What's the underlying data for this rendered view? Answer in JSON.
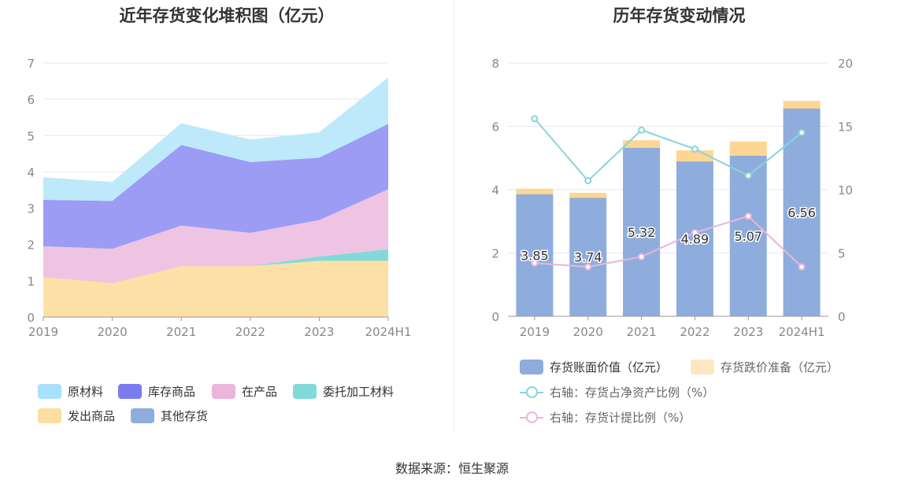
{
  "left": {
    "title": "近年存货变化堆积图（亿元）",
    "legend": [
      {
        "label": "原材料",
        "color": "#a8e1fb"
      },
      {
        "label": "库存商品",
        "color": "#7b7bf0"
      },
      {
        "label": "在产品",
        "color": "#ebb6d9"
      },
      {
        "label": "委托加工材料",
        "color": "#82d9d9"
      },
      {
        "label": "发出商品",
        "color": "#fddea0"
      },
      {
        "label": "其他存货",
        "color": "#8eaddc"
      }
    ]
  },
  "right": {
    "title": "历年存货变动情况",
    "legend": [
      {
        "label": "存货账面价值（亿元）",
        "color": "#8eaddc"
      },
      {
        "label": "存货跌价准备（亿元）",
        "color": "#fde6c0"
      },
      {
        "label": "右轴：存货占净资产比例（%）",
        "color": "#88d4d8"
      },
      {
        "label": "右轴：存货计提比例（%）",
        "color": "#e8b6da"
      }
    ]
  },
  "source": "数据来源：恒生聚源",
  "chart_data": [
    {
      "type": "area",
      "title": "近年存货变化堆积图（亿元）",
      "stacked": true,
      "categories": [
        "2019",
        "2020",
        "2021",
        "2022",
        "2023",
        "2024H1"
      ],
      "ylim": [
        0,
        7
      ],
      "yticks": [
        0,
        1,
        2,
        3,
        4,
        5,
        6,
        7
      ],
      "grid": true,
      "legend_position": "bottom",
      "series": [
        {
          "name": "发出商品",
          "color": "#fde0a6",
          "values": [
            1.1,
            0.93,
            1.4,
            1.4,
            1.55,
            1.55
          ]
        },
        {
          "name": "委托加工材料",
          "color": "#82d9d9",
          "values": [
            0.0,
            0.0,
            0.0,
            0.0,
            0.12,
            0.32
          ]
        },
        {
          "name": "在产品",
          "color": "#eec4e2",
          "values": [
            0.85,
            0.95,
            1.12,
            0.92,
            1.0,
            1.65
          ]
        },
        {
          "name": "库存商品",
          "color": "#9c9cf4",
          "values": [
            1.28,
            1.32,
            2.22,
            1.95,
            1.72,
            1.8
          ]
        },
        {
          "name": "原材料",
          "color": "#bde9fb",
          "values": [
            0.62,
            0.52,
            0.6,
            0.62,
            0.7,
            1.28
          ]
        },
        {
          "name": "其他存货",
          "color": "#8eaddc",
          "values": [
            0,
            0,
            0,
            0,
            0,
            0
          ]
        }
      ]
    },
    {
      "type": "bar",
      "title": "历年存货变动情况",
      "categories": [
        "2019",
        "2020",
        "2021",
        "2022",
        "2023",
        "2024H1"
      ],
      "ylim_left": [
        0,
        8
      ],
      "yticks_left": [
        0,
        2,
        4,
        6,
        8
      ],
      "ylim_right": [
        0,
        20
      ],
      "yticks_right": [
        0,
        5,
        10,
        15,
        20
      ],
      "grid": true,
      "legend_position": "bottom",
      "series": [
        {
          "name": "存货账面价值（亿元）",
          "type": "bar",
          "axis": "left",
          "color": "#8eaddc",
          "values": [
            3.85,
            3.74,
            5.32,
            4.89,
            5.07,
            6.56
          ],
          "labels": [
            "3.85",
            "3.74",
            "5.32",
            "4.89",
            "5.07",
            "6.56"
          ]
        },
        {
          "name": "存货跌价准备（亿元）",
          "type": "bar",
          "axis": "left",
          "color": "#fdd694",
          "values": [
            0.18,
            0.16,
            0.24,
            0.35,
            0.45,
            0.24
          ]
        },
        {
          "name": "右轴：存货占净资产比例（%）",
          "type": "line",
          "axis": "right",
          "color": "#88d4d8",
          "values": [
            15.6,
            10.7,
            14.7,
            13.2,
            11.1,
            14.5
          ]
        },
        {
          "name": "右轴：存货计提比例（%）",
          "type": "line",
          "axis": "right",
          "color": "#e8b6da",
          "values": [
            4.2,
            3.9,
            4.7,
            6.6,
            7.9,
            3.9
          ]
        }
      ]
    }
  ]
}
